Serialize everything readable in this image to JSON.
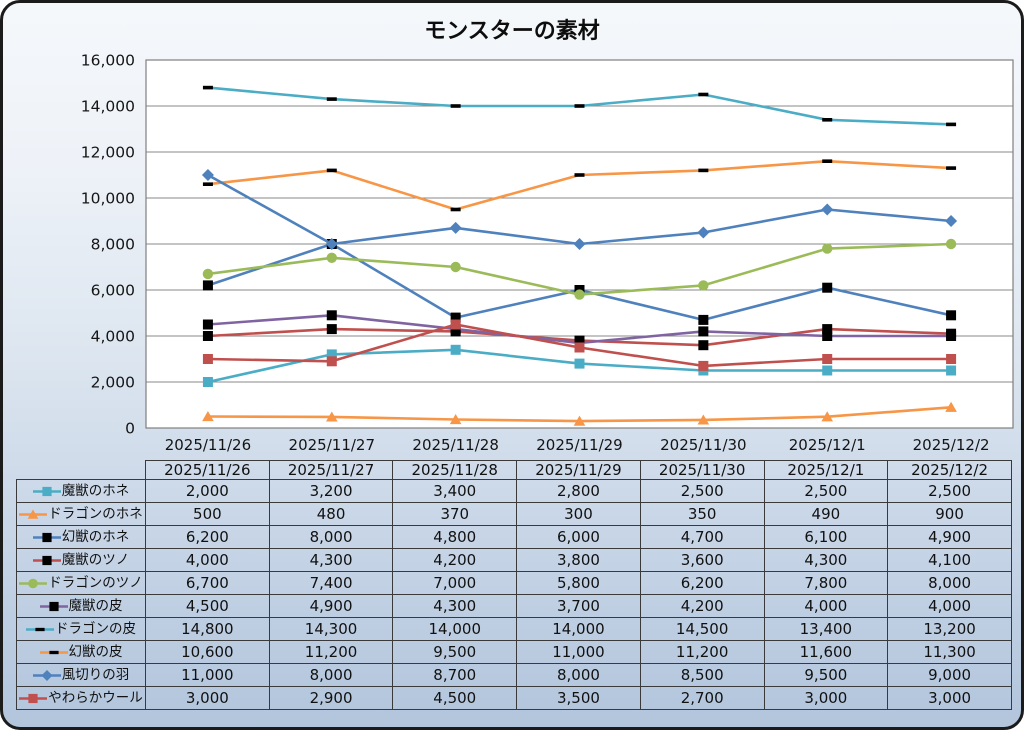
{
  "chart_data": {
    "type": "line",
    "title": "モンスターの素材",
    "categories": [
      "2025/11/26",
      "2025/11/27",
      "2025/11/28",
      "2025/11/29",
      "2025/11/30",
      "2025/12/1",
      "2025/12/2"
    ],
    "series": [
      {
        "name": "魔獣のホネ",
        "color": "#4BACC6",
        "marker": "square",
        "marker_color": "#4BACC6",
        "values": [
          2000,
          3200,
          3400,
          2800,
          2500,
          2500,
          2500
        ]
      },
      {
        "name": "ドラゴンのホネ",
        "color": "#F79646",
        "marker": "triangle",
        "marker_color": "#F79646",
        "values": [
          500,
          480,
          370,
          300,
          350,
          490,
          900
        ]
      },
      {
        "name": "幻獣のホネ",
        "color": "#4F81BD",
        "marker": "square",
        "marker_color": "#000000",
        "values": [
          6200,
          8000,
          4800,
          6000,
          4700,
          6100,
          4900
        ]
      },
      {
        "name": "魔獣のツノ",
        "color": "#C0504D",
        "marker": "square",
        "marker_color": "#000000",
        "values": [
          4000,
          4300,
          4200,
          3800,
          3600,
          4300,
          4100
        ]
      },
      {
        "name": "ドラゴンのツノ",
        "color": "#9BBB59",
        "marker": "circle",
        "marker_color": "#9BBB59",
        "values": [
          6700,
          7400,
          7000,
          5800,
          6200,
          7800,
          8000
        ]
      },
      {
        "name": "魔獣の皮",
        "color": "#8064A2",
        "marker": "square",
        "marker_color": "#000000",
        "values": [
          4500,
          4900,
          4300,
          3700,
          4200,
          4000,
          4000
        ]
      },
      {
        "name": "ドラゴンの皮",
        "color": "#4BACC6",
        "marker": "dash",
        "marker_color": "#000000",
        "values": [
          14800,
          14300,
          14000,
          14000,
          14500,
          13400,
          13200
        ]
      },
      {
        "name": "幻獣の皮",
        "color": "#F79646",
        "marker": "dash",
        "marker_color": "#000000",
        "values": [
          10600,
          11200,
          9500,
          11000,
          11200,
          11600,
          11300
        ]
      },
      {
        "name": "風切りの羽",
        "color": "#4F81BD",
        "marker": "diamond",
        "marker_color": "#4F81BD",
        "values": [
          11000,
          8000,
          8700,
          8000,
          8500,
          9500,
          9000
        ]
      },
      {
        "name": "やわらかウール",
        "color": "#C0504D",
        "marker": "square",
        "marker_color": "#C0504D",
        "values": [
          3000,
          2900,
          4500,
          3500,
          2700,
          3000,
          3000
        ]
      }
    ],
    "xlabel": "",
    "ylabel": "",
    "ylim": [
      0,
      16000
    ],
    "ytick_step": 2000,
    "ytick_labels": [
      "0",
      "2,000",
      "4,000",
      "6,000",
      "8,000",
      "10,000",
      "12,000",
      "14,000",
      "16,000"
    ],
    "grid": true,
    "legend_position": "data-table-left",
    "data_table_shown": true,
    "colors": {
      "plot_background": "#ffffff",
      "gridline": "#8a8a8a",
      "plot_border": "#7f7f7f",
      "table_border": "#3a3a3a",
      "text": "#161616"
    }
  }
}
